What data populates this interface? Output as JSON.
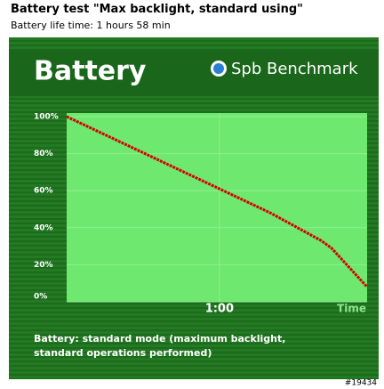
{
  "chart_data": {
    "type": "line",
    "title": "Battery test \"Max backlight, standard using\"",
    "subtitle": "Battery life time: 1 hours 58 min",
    "header": "Battery",
    "brand": "Spb Benchmark",
    "x_label": "Time",
    "caption": [
      "Battery: standard mode (maximum backlight,",
      "standard operations performed)"
    ],
    "watermark": "#19434",
    "x": [
      0,
      20,
      40,
      60,
      80,
      100,
      104,
      110,
      118
    ],
    "series": [
      {
        "name": "Battery",
        "color": "#d40000",
        "values": [
          100,
          87,
          74,
          61,
          48,
          33,
          29,
          20,
          8
        ]
      }
    ],
    "xlim": [
      0,
      118
    ],
    "xticks": [
      {
        "value": 60,
        "label": "1:00"
      }
    ],
    "ylim": [
      0,
      100
    ],
    "yticks": [
      {
        "value": 0,
        "label": "0%"
      },
      {
        "value": 20,
        "label": "20%"
      },
      {
        "value": 40,
        "label": "40%"
      },
      {
        "value": 60,
        "label": "60%"
      },
      {
        "value": 80,
        "label": "80%"
      },
      {
        "value": 100,
        "label": "100%"
      }
    ],
    "grid": true
  }
}
